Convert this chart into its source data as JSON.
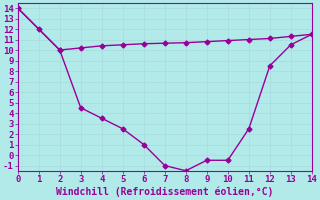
{
  "line1_x": [
    0,
    1,
    2,
    3,
    4,
    5,
    6,
    7,
    8,
    9,
    10,
    11,
    12,
    13,
    14
  ],
  "line1_y": [
    14,
    12,
    10,
    4.5,
    3.5,
    2.5,
    1.0,
    -1.0,
    -1.5,
    -0.5,
    -0.5,
    2.5,
    8.5,
    10.5,
    11.5
  ],
  "line2_x": [
    0,
    2,
    3,
    4,
    5,
    6,
    7,
    8,
    9,
    10,
    11,
    12,
    13,
    14
  ],
  "line2_y": [
    14,
    10.0,
    10.2,
    10.4,
    10.5,
    10.6,
    10.65,
    10.7,
    10.8,
    10.9,
    11.0,
    11.1,
    11.3,
    11.5
  ],
  "color": "#990099",
  "bg_color": "#b2eaea",
  "grid_color": "#c8e8e8",
  "xlabel": "Windchill (Refroidissement éolien,°C)",
  "xlim": [
    0,
    14
  ],
  "ylim": [
    -1.5,
    14.5
  ],
  "xticks": [
    0,
    1,
    2,
    3,
    4,
    5,
    6,
    7,
    8,
    9,
    10,
    11,
    12,
    13,
    14
  ],
  "yticks": [
    -1,
    0,
    1,
    2,
    3,
    4,
    5,
    6,
    7,
    8,
    9,
    10,
    11,
    12,
    13,
    14
  ],
  "ytick_labels": [
    "-1",
    "0",
    "1",
    "2",
    "3",
    "4",
    "5",
    "6",
    "7",
    "8",
    "9",
    "10",
    "11",
    "12",
    "13",
    "14"
  ],
  "marker": "D",
  "markersize": 2.5,
  "linewidth": 1.0,
  "tick_fontsize": 6.5,
  "xlabel_fontsize": 7.0
}
